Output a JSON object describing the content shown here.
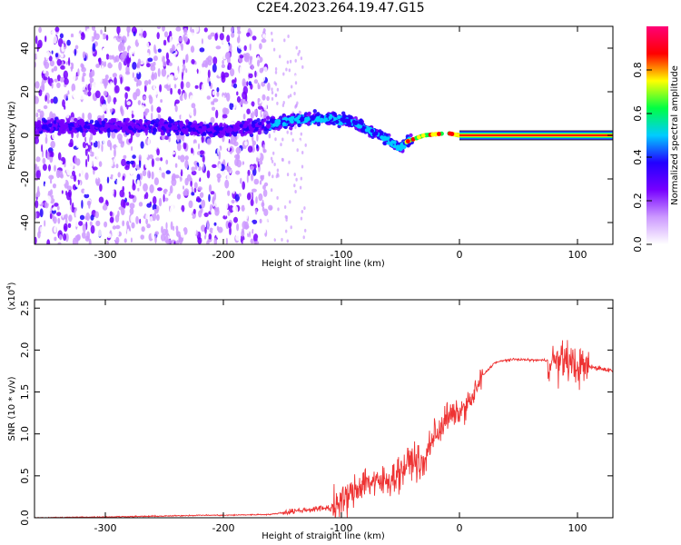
{
  "title": "C2E4.2023.264.19.47.G15",
  "chart_data": [
    {
      "type": "heatmap",
      "xlabel": "Height of straight line (km)",
      "ylabel": "Frequency (Hz)",
      "xlim": [
        -360,
        130
      ],
      "ylim": [
        -50,
        50
      ],
      "x_ticks": [
        -300,
        -200,
        -100,
        0,
        100
      ],
      "x_tick_labels": [
        "-300",
        "-200",
        "-100",
        "0",
        "100"
      ],
      "y_ticks": [
        -40,
        -20,
        0,
        20,
        40
      ],
      "y_tick_labels": [
        "-40",
        "-20",
        "0",
        "20",
        "40"
      ],
      "ridge": [
        {
          "x": -320,
          "y": 4
        },
        {
          "x": -240,
          "y": 4
        },
        {
          "x": -200,
          "y": 2
        },
        {
          "x": -160,
          "y": 5
        },
        {
          "x": -140,
          "y": 7
        },
        {
          "x": -110,
          "y": 8
        },
        {
          "x": -90,
          "y": 6
        },
        {
          "x": -75,
          "y": 2
        },
        {
          "x": -60,
          "y": -2
        },
        {
          "x": -50,
          "y": -6
        },
        {
          "x": -45,
          "y": -3
        },
        {
          "x": -30,
          "y": 0
        },
        {
          "x": -10,
          "y": 1
        },
        {
          "x": 0,
          "y": 0
        },
        {
          "x": 130,
          "y": 0
        }
      ],
      "colorbar": {
        "label": "Normalized spectral amplitude",
        "range": [
          0.0,
          1.0
        ],
        "ticks": [
          0.0,
          0.2,
          0.4,
          0.6,
          0.8
        ],
        "tick_labels": [
          "0.0",
          "0.2",
          "0.4",
          "0.6",
          "0.8"
        ],
        "colors": [
          "#ffffff",
          "#cc99ff",
          "#7700ff",
          "#2200ff",
          "#00ccff",
          "#00ff44",
          "#ffff00",
          "#ff0000",
          "#ff0077"
        ]
      }
    },
    {
      "type": "line",
      "xlabel": "Height of straight line (km)",
      "ylabel": "SNR (10 * v/v)",
      "y_scale_note": "(x10",
      "y_scale_exp": "4",
      "y_scale_close": ")",
      "xlim": [
        -360,
        130
      ],
      "ylim": [
        0.0,
        2.6
      ],
      "x_ticks": [
        -300,
        -200,
        -100,
        0,
        100
      ],
      "x_tick_labels": [
        "-300",
        "-200",
        "-100",
        "0",
        "100"
      ],
      "y_ticks": [
        0.0,
        0.5,
        1.0,
        1.5,
        2.0,
        2.5
      ],
      "y_tick_labels": [
        "0.0",
        "0.5",
        "1.0",
        "1.5",
        "2.0",
        "2.5"
      ],
      "series": [
        {
          "color": "#ee3333",
          "x": [
            -360,
            -300,
            -250,
            -220,
            -200,
            -160,
            -140,
            -125,
            -110,
            -100,
            -90,
            -80,
            -70,
            -60,
            -50,
            -40,
            -30,
            -25,
            -20,
            -10,
            0,
            10,
            20,
            30,
            40,
            50,
            60,
            70,
            80,
            85,
            90,
            95,
            100,
            110,
            120,
            130
          ],
          "y": [
            0.0,
            0.01,
            0.02,
            0.03,
            0.03,
            0.04,
            0.08,
            0.1,
            0.12,
            0.18,
            0.3,
            0.45,
            0.4,
            0.45,
            0.55,
            0.7,
            0.6,
            0.9,
            1.0,
            1.2,
            1.25,
            1.4,
            1.7,
            1.85,
            1.88,
            1.89,
            1.88,
            1.88,
            1.87,
            1.85,
            1.9,
            1.83,
            1.8,
            1.8,
            1.78,
            1.75
          ]
        }
      ]
    }
  ]
}
